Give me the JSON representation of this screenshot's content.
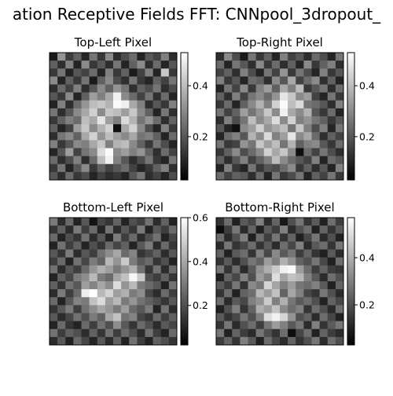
{
  "figure": {
    "title": "ation Receptive Fields FFT: CNNpool_3dropout_"
  },
  "chart_data": [
    {
      "type": "heatmap",
      "title": "Top-Left  Pixel",
      "colormap": "gray",
      "grid_size": [
        16,
        16
      ],
      "colorbar": {
        "range": [
          0.03,
          0.53
        ],
        "ticks": [
          0.2,
          0.4
        ],
        "tick_labels": [
          "0.2",
          "0.4"
        ]
      },
      "grid": false,
      "values": [
        [
          0.08,
          0.32,
          0.15,
          0.22,
          0.1,
          0.26,
          0.14,
          0.3,
          0.12,
          0.18,
          0.24,
          0.1,
          0.2,
          0.16,
          0.28,
          0.12
        ],
        [
          0.22,
          0.12,
          0.28,
          0.1,
          0.3,
          0.14,
          0.2,
          0.12,
          0.26,
          0.1,
          0.22,
          0.3,
          0.12,
          0.24,
          0.1,
          0.2
        ],
        [
          0.14,
          0.26,
          0.1,
          0.2,
          0.16,
          0.24,
          0.1,
          0.28,
          0.14,
          0.22,
          0.08,
          0.16,
          0.28,
          0.1,
          0.42,
          0.14
        ],
        [
          0.3,
          0.1,
          0.22,
          0.14,
          0.26,
          0.08,
          0.22,
          0.3,
          0.18,
          0.12,
          0.26,
          0.14,
          0.1,
          0.22,
          0.16,
          0.26
        ],
        [
          0.12,
          0.24,
          0.16,
          0.28,
          0.12,
          0.2,
          0.3,
          0.22,
          0.32,
          0.26,
          0.12,
          0.22,
          0.18,
          0.26,
          0.12,
          0.18
        ],
        [
          0.2,
          0.14,
          0.3,
          0.1,
          0.22,
          0.34,
          0.28,
          0.36,
          0.5,
          0.3,
          0.24,
          0.16,
          0.26,
          0.12,
          0.24,
          0.1
        ],
        [
          0.1,
          0.28,
          0.12,
          0.24,
          0.32,
          0.4,
          0.42,
          0.38,
          0.52,
          0.5,
          0.36,
          0.28,
          0.12,
          0.2,
          0.14,
          0.28
        ],
        [
          0.26,
          0.12,
          0.2,
          0.3,
          0.36,
          0.44,
          0.3,
          0.42,
          0.4,
          0.34,
          0.42,
          0.3,
          0.22,
          0.1,
          0.26,
          0.12
        ],
        [
          0.14,
          0.22,
          0.28,
          0.24,
          0.4,
          0.36,
          0.48,
          0.34,
          0.28,
          0.46,
          0.38,
          0.26,
          0.32,
          0.24,
          0.12,
          0.22
        ],
        [
          0.22,
          0.1,
          0.16,
          0.34,
          0.42,
          0.3,
          0.38,
          0.44,
          0.06,
          0.36,
          0.44,
          0.3,
          0.18,
          0.1,
          0.28,
          0.14
        ],
        [
          0.12,
          0.26,
          0.3,
          0.22,
          0.36,
          0.44,
          0.32,
          0.4,
          0.34,
          0.3,
          0.36,
          0.26,
          0.28,
          0.22,
          0.1,
          0.24
        ],
        [
          0.28,
          0.14,
          0.2,
          0.3,
          0.28,
          0.36,
          0.42,
          0.28,
          0.38,
          0.4,
          0.3,
          0.22,
          0.14,
          0.26,
          0.18,
          0.1
        ],
        [
          0.1,
          0.2,
          0.34,
          0.16,
          0.26,
          0.3,
          0.46,
          0.52,
          0.3,
          0.34,
          0.28,
          0.32,
          0.22,
          0.12,
          0.24,
          0.16
        ],
        [
          0.24,
          0.12,
          0.18,
          0.28,
          0.12,
          0.24,
          0.4,
          0.5,
          0.28,
          0.2,
          0.12,
          0.18,
          0.26,
          0.14,
          0.1,
          0.26
        ],
        [
          0.14,
          0.26,
          0.1,
          0.2,
          0.3,
          0.14,
          0.22,
          0.16,
          0.2,
          0.24,
          0.16,
          0.1,
          0.14,
          0.22,
          0.28,
          0.12
        ],
        [
          0.2,
          0.12,
          0.24,
          0.14,
          0.18,
          0.1,
          0.16,
          0.12,
          0.14,
          0.1,
          0.2,
          0.26,
          0.12,
          0.16,
          0.1,
          0.18
        ]
      ]
    },
    {
      "type": "heatmap",
      "title": "Top-Right Pixel",
      "colormap": "gray",
      "grid_size": [
        16,
        16
      ],
      "colorbar": {
        "range": [
          0.03,
          0.53
        ],
        "ticks": [
          0.2,
          0.4
        ],
        "tick_labels": [
          "0.2",
          "0.4"
        ]
      },
      "grid": false,
      "values": [
        [
          0.12,
          0.3,
          0.18,
          0.08,
          0.26,
          0.14,
          0.22,
          0.1,
          0.28,
          0.16,
          0.2,
          0.12,
          0.24,
          0.18,
          0.1,
          0.26
        ],
        [
          0.24,
          0.1,
          0.26,
          0.2,
          0.12,
          0.3,
          0.14,
          0.24,
          0.12,
          0.22,
          0.1,
          0.3,
          0.14,
          0.22,
          0.28,
          0.12
        ],
        [
          0.16,
          0.22,
          0.12,
          0.28,
          0.18,
          0.1,
          0.26,
          0.16,
          0.32,
          0.14,
          0.26,
          0.18,
          0.1,
          0.28,
          0.14,
          0.2
        ],
        [
          0.28,
          0.14,
          0.2,
          0.1,
          0.24,
          0.22,
          0.12,
          0.3,
          0.2,
          0.36,
          0.16,
          0.24,
          0.3,
          0.12,
          0.22,
          0.1
        ],
        [
          0.1,
          0.26,
          0.16,
          0.3,
          0.14,
          0.28,
          0.34,
          0.22,
          0.36,
          0.28,
          0.4,
          0.14,
          0.2,
          0.26,
          0.12,
          0.24
        ],
        [
          0.22,
          0.12,
          0.28,
          0.16,
          0.26,
          0.3,
          0.24,
          0.32,
          0.48,
          0.42,
          0.3,
          0.34,
          0.16,
          0.1,
          0.26,
          0.14
        ],
        [
          0.14,
          0.24,
          0.1,
          0.22,
          0.3,
          0.38,
          0.28,
          0.44,
          0.52,
          0.4,
          0.46,
          0.26,
          0.24,
          0.2,
          0.12,
          0.28
        ],
        [
          0.26,
          0.16,
          0.22,
          0.34,
          0.26,
          0.32,
          0.42,
          0.3,
          0.5,
          0.36,
          0.3,
          0.38,
          0.2,
          0.14,
          0.24,
          0.1
        ],
        [
          0.12,
          0.28,
          0.18,
          0.26,
          0.4,
          0.3,
          0.36,
          0.46,
          0.3,
          0.44,
          0.28,
          0.32,
          0.26,
          0.22,
          0.14,
          0.2
        ],
        [
          0.2,
          0.1,
          0.06,
          0.3,
          0.34,
          0.44,
          0.32,
          0.36,
          0.4,
          0.26,
          0.42,
          0.28,
          0.18,
          0.28,
          0.1,
          0.26
        ],
        [
          0.1,
          0.24,
          0.28,
          0.2,
          0.38,
          0.3,
          0.46,
          0.28,
          0.34,
          0.48,
          0.3,
          0.36,
          0.24,
          0.12,
          0.22,
          0.16
        ],
        [
          0.26,
          0.14,
          0.16,
          0.32,
          0.26,
          0.42,
          0.34,
          0.4,
          0.26,
          0.38,
          0.22,
          0.28,
          0.3,
          0.2,
          0.14,
          0.24
        ],
        [
          0.14,
          0.22,
          0.3,
          0.18,
          0.24,
          0.3,
          0.44,
          0.36,
          0.42,
          0.3,
          0.06,
          0.24,
          0.16,
          0.26,
          0.18,
          0.12
        ],
        [
          0.22,
          0.12,
          0.2,
          0.28,
          0.16,
          0.22,
          0.28,
          0.4,
          0.3,
          0.24,
          0.2,
          0.16,
          0.28,
          0.1,
          0.24,
          0.2
        ],
        [
          0.1,
          0.28,
          0.14,
          0.1,
          0.26,
          0.14,
          0.2,
          0.18,
          0.24,
          0.3,
          0.14,
          0.22,
          0.12,
          0.2,
          0.1,
          0.28
        ],
        [
          0.24,
          0.16,
          0.22,
          0.2,
          0.12,
          0.24,
          0.1,
          0.26,
          0.14,
          0.18,
          0.26,
          0.1,
          0.22,
          0.16,
          0.26,
          0.14
        ]
      ]
    },
    {
      "type": "heatmap",
      "title": "Bottom-Left Pixel",
      "colormap": "gray",
      "grid_size": [
        16,
        16
      ],
      "colorbar": {
        "range": [
          0.02,
          0.6
        ],
        "ticks": [
          0.2,
          0.4,
          0.6
        ],
        "tick_labels": [
          "0.2",
          "0.4",
          "0.6"
        ]
      },
      "grid": false,
      "values": [
        [
          0.3,
          0.12,
          0.26,
          0.1,
          0.22,
          0.06,
          0.18,
          0.14,
          0.24,
          0.1,
          0.2,
          0.16,
          0.28,
          0.12,
          0.24,
          0.1
        ],
        [
          0.14,
          0.24,
          0.12,
          0.3,
          0.16,
          0.26,
          0.1,
          0.28,
          0.12,
          0.22,
          0.14,
          0.3,
          0.1,
          0.22,
          0.16,
          0.26
        ],
        [
          0.26,
          0.1,
          0.2,
          0.14,
          0.28,
          0.12,
          0.22,
          0.1,
          0.3,
          0.16,
          0.26,
          0.12,
          0.2,
          0.28,
          0.1,
          0.18
        ],
        [
          0.1,
          0.28,
          0.16,
          0.24,
          0.1,
          0.2,
          0.14,
          0.26,
          0.18,
          0.24,
          0.1,
          0.22,
          0.3,
          0.12,
          0.26,
          0.14
        ],
        [
          0.22,
          0.14,
          0.3,
          0.12,
          0.22,
          0.16,
          0.28,
          0.34,
          0.4,
          0.26,
          0.32,
          0.14,
          0.18,
          0.24,
          0.12,
          0.22
        ],
        [
          0.16,
          0.26,
          0.1,
          0.28,
          0.18,
          0.3,
          0.24,
          0.44,
          0.36,
          0.48,
          0.3,
          0.22,
          0.26,
          0.14,
          0.2,
          0.1
        ],
        [
          0.28,
          0.12,
          0.22,
          0.16,
          0.26,
          0.36,
          0.42,
          0.38,
          0.3,
          0.36,
          0.42,
          0.28,
          0.14,
          0.28,
          0.12,
          0.26
        ],
        [
          0.1,
          0.24,
          0.18,
          0.3,
          0.34,
          0.44,
          0.3,
          0.26,
          0.4,
          0.46,
          0.58,
          0.48,
          0.2,
          0.16,
          0.24,
          0.14
        ],
        [
          0.24,
          0.14,
          0.28,
          0.22,
          0.38,
          0.32,
          0.4,
          0.34,
          0.52,
          0.36,
          0.44,
          0.3,
          0.26,
          0.22,
          0.1,
          0.28
        ],
        [
          0.12,
          0.3,
          0.16,
          0.26,
          0.56,
          0.6,
          0.44,
          0.5,
          0.38,
          0.42,
          0.3,
          0.34,
          0.18,
          0.12,
          0.26,
          0.16
        ],
        [
          0.26,
          0.1,
          0.22,
          0.32,
          0.3,
          0.46,
          0.52,
          0.38,
          0.44,
          0.3,
          0.36,
          0.28,
          0.24,
          0.2,
          0.14,
          0.22
        ],
        [
          0.14,
          0.22,
          0.3,
          0.16,
          0.28,
          0.34,
          0.4,
          0.36,
          0.3,
          0.38,
          0.26,
          0.22,
          0.3,
          0.1,
          0.28,
          0.12
        ],
        [
          0.22,
          0.12,
          0.18,
          0.28,
          0.2,
          0.3,
          0.24,
          0.4,
          0.46,
          0.28,
          0.32,
          0.18,
          0.14,
          0.26,
          0.16,
          0.24
        ],
        [
          0.1,
          0.26,
          0.14,
          0.1,
          0.26,
          0.16,
          0.28,
          0.2,
          0.34,
          0.22,
          0.14,
          0.26,
          0.2,
          0.12,
          0.22,
          0.18
        ],
        [
          0.28,
          0.16,
          0.24,
          0.2,
          0.12,
          0.24,
          0.14,
          0.28,
          0.16,
          0.26,
          0.2,
          0.12,
          0.28,
          0.16,
          0.1,
          0.26
        ],
        [
          0.12,
          0.22,
          0.1,
          0.26,
          0.18,
          0.1,
          0.22,
          0.12,
          0.24,
          0.1,
          0.28,
          0.16,
          0.1,
          0.24,
          0.2,
          0.14
        ]
      ]
    },
    {
      "type": "heatmap",
      "title": "Bottom-Right Pixel",
      "colormap": "gray",
      "grid_size": [
        16,
        16
      ],
      "colorbar": {
        "range": [
          0.03,
          0.57
        ],
        "ticks": [
          0.2,
          0.4
        ],
        "tick_labels": [
          "0.2",
          "0.4"
        ]
      },
      "grid": false,
      "values": [
        [
          0.14,
          0.26,
          0.1,
          0.22,
          0.18,
          0.3,
          0.12,
          0.24,
          0.08,
          0.2,
          0.28,
          0.14,
          0.22,
          0.1,
          0.26,
          0.16
        ],
        [
          0.06,
          0.16,
          0.28,
          0.12,
          0.24,
          0.1,
          0.22,
          0.16,
          0.3,
          0.12,
          0.2,
          0.26,
          0.1,
          0.24,
          0.14,
          0.22
        ],
        [
          0.26,
          0.12,
          0.2,
          0.3,
          0.1,
          0.26,
          0.16,
          0.28,
          0.14,
          0.24,
          0.1,
          0.18,
          0.28,
          0.12,
          0.2,
          0.1
        ],
        [
          0.12,
          0.28,
          0.14,
          0.18,
          0.26,
          0.14,
          0.22,
          0.12,
          0.26,
          0.18,
          0.3,
          0.12,
          0.22,
          0.26,
          0.14,
          0.28
        ],
        [
          0.24,
          0.1,
          0.22,
          0.26,
          0.14,
          0.3,
          0.18,
          0.32,
          0.22,
          0.28,
          0.16,
          0.24,
          0.14,
          0.1,
          0.22,
          0.12
        ],
        [
          0.14,
          0.22,
          0.12,
          0.2,
          0.28,
          0.24,
          0.36,
          0.3,
          0.4,
          0.34,
          0.24,
          0.2,
          0.28,
          0.18,
          0.1,
          0.26
        ],
        [
          0.28,
          0.14,
          0.26,
          0.12,
          0.22,
          0.34,
          0.4,
          0.46,
          0.54,
          0.56,
          0.36,
          0.26,
          0.16,
          0.24,
          0.16,
          0.14
        ],
        [
          0.1,
          0.24,
          0.18,
          0.3,
          0.2,
          0.36,
          0.3,
          0.5,
          0.38,
          0.44,
          0.42,
          0.3,
          0.22,
          0.12,
          0.26,
          0.2
        ],
        [
          0.22,
          0.16,
          0.28,
          0.14,
          0.32,
          0.28,
          0.48,
          0.38,
          0.3,
          0.36,
          0.28,
          0.26,
          0.3,
          0.22,
          0.1,
          0.24
        ],
        [
          0.14,
          0.26,
          0.1,
          0.24,
          0.26,
          0.42,
          0.36,
          0.44,
          0.24,
          0.38,
          0.3,
          0.18,
          0.14,
          0.28,
          0.2,
          0.12
        ],
        [
          0.26,
          0.12,
          0.22,
          0.18,
          0.3,
          0.34,
          0.46,
          0.3,
          0.4,
          0.28,
          0.22,
          0.26,
          0.2,
          0.1,
          0.24,
          0.18
        ],
        [
          0.1,
          0.2,
          0.3,
          0.14,
          0.24,
          0.4,
          0.36,
          0.44,
          0.32,
          0.26,
          0.3,
          0.14,
          0.26,
          0.2,
          0.12,
          0.26
        ],
        [
          0.22,
          0.14,
          0.18,
          0.28,
          0.2,
          0.3,
          0.5,
          0.54,
          0.48,
          0.34,
          0.2,
          0.24,
          0.12,
          0.26,
          0.18,
          0.1
        ],
        [
          0.14,
          0.28,
          0.12,
          0.2,
          0.26,
          0.16,
          0.28,
          0.36,
          0.3,
          0.22,
          0.28,
          0.12,
          0.3,
          0.14,
          0.22,
          0.28
        ],
        [
          0.28,
          0.1,
          0.24,
          0.16,
          0.12,
          0.28,
          0.2,
          0.14,
          0.26,
          0.06,
          0.18,
          0.26,
          0.1,
          0.24,
          0.16,
          0.12
        ],
        [
          0.16,
          0.24,
          0.14,
          0.3,
          0.22,
          0.1,
          0.26,
          0.18,
          0.12,
          0.24,
          0.14,
          0.2,
          0.28,
          0.12,
          0.26,
          0.2
        ]
      ]
    }
  ]
}
